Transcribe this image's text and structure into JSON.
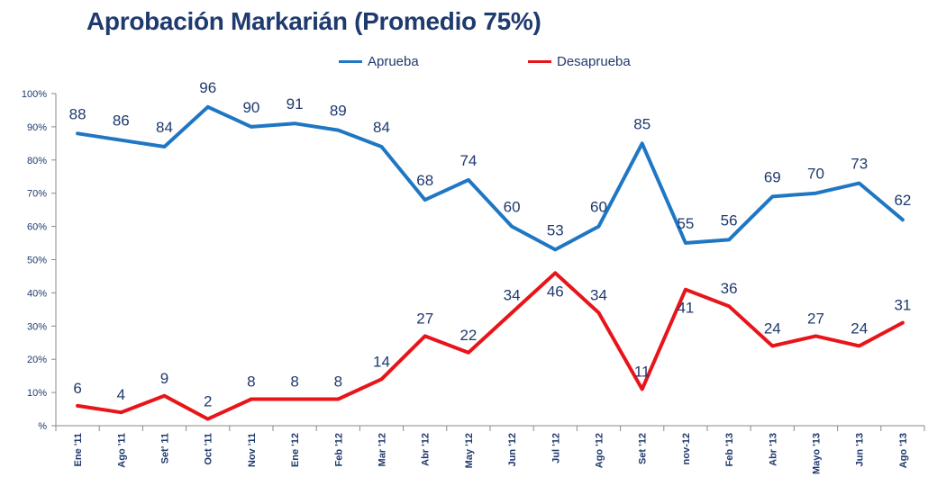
{
  "chart_data": {
    "type": "line",
    "title": "Aprobación Markarián (Promedio 75%)",
    "xlabel": "",
    "ylabel": "",
    "ylim": [
      0,
      100
    ],
    "yticks": [
      "%",
      "10%",
      "20%",
      "30%",
      "40%",
      "50%",
      "60%",
      "70%",
      "80%",
      "90%",
      "100%"
    ],
    "grid": false,
    "legend_position": "top-center",
    "categories": [
      "Ene '11",
      "Ago '11",
      "Set' 11",
      "Oct '11",
      "Nov '11",
      "Ene '12",
      "Feb '12",
      "Mar '12",
      "Abr '12",
      "May '12",
      "Jun '12",
      "Jul '12",
      "Ago '12",
      "Set '12",
      "nov-12",
      "Feb '13",
      "Abr '13",
      "Mayo '13",
      "Jun '13",
      "Ago '13"
    ],
    "series": [
      {
        "name": "Aprueba",
        "color": "#1f77c4",
        "values": [
          88,
          86,
          84,
          96,
          90,
          91,
          89,
          84,
          68,
          74,
          60,
          53,
          60,
          85,
          55,
          56,
          69,
          70,
          73,
          62
        ]
      },
      {
        "name": "Desaprueba",
        "color": "#e8141a",
        "values": [
          6,
          4,
          9,
          2,
          8,
          8,
          8,
          14,
          27,
          22,
          34,
          46,
          34,
          11,
          41,
          36,
          24,
          27,
          24,
          31
        ]
      }
    ]
  }
}
